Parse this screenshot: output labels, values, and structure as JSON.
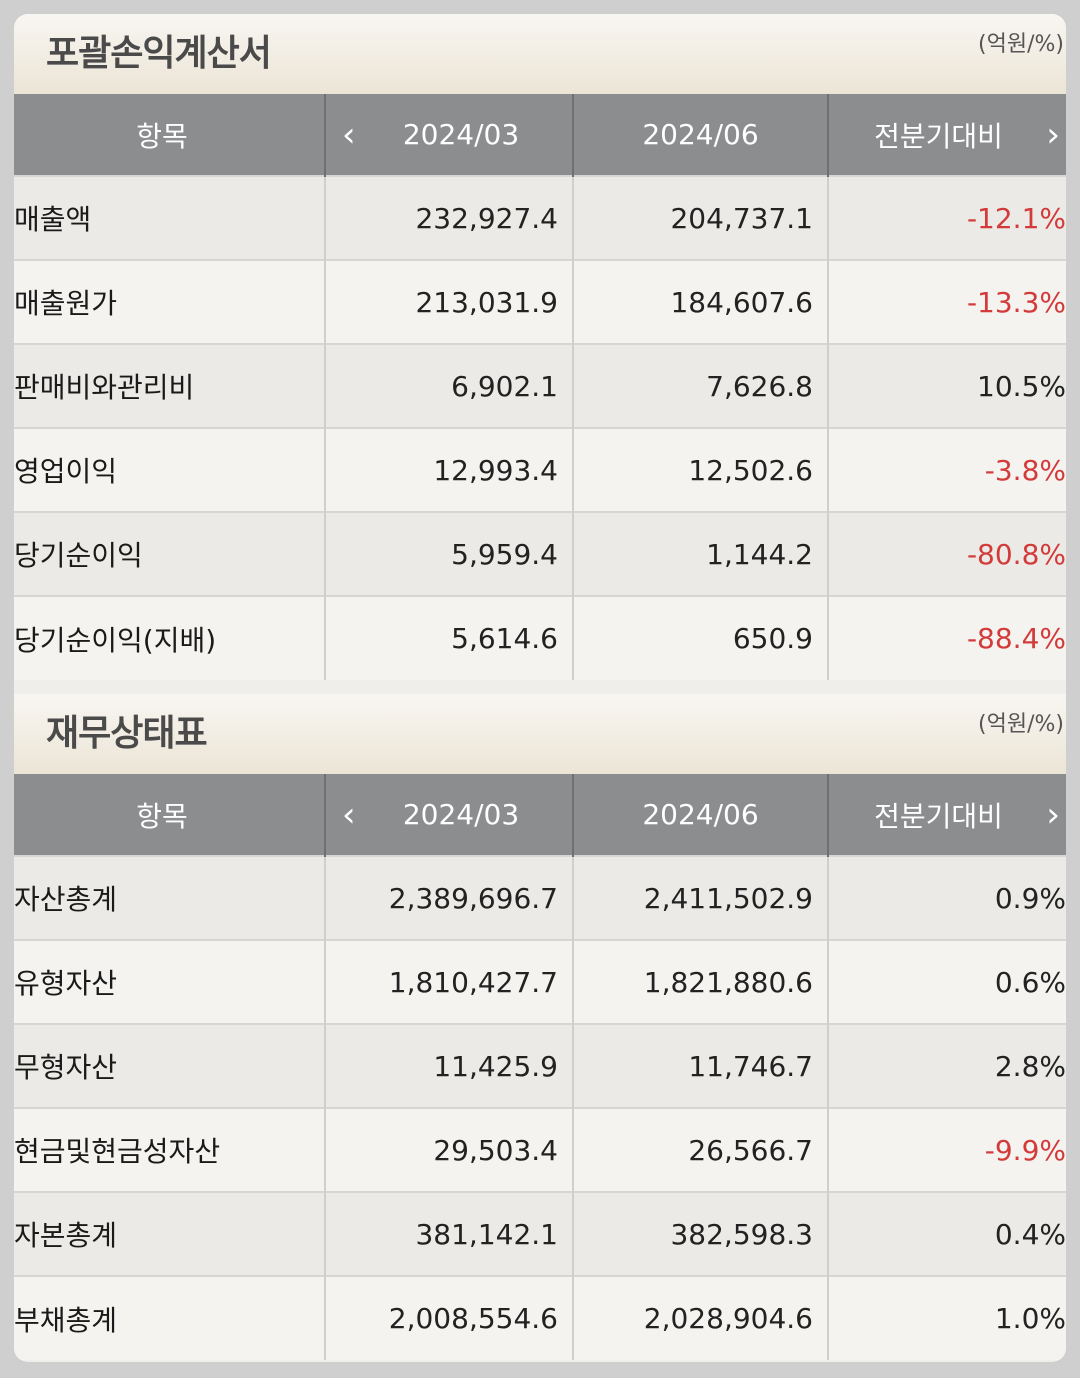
{
  "income": {
    "title": "포괄손익계산서",
    "unit": "(억원/%)",
    "headers": [
      "항목",
      "2024/03",
      "2024/06",
      "전분기대비"
    ],
    "rows": [
      {
        "label": "매출액",
        "v1": "232,927.4",
        "v2": "204,737.1",
        "chg": "-12.1%"
      },
      {
        "label": "매출원가",
        "v1": "213,031.9",
        "v2": "184,607.6",
        "chg": "-13.3%"
      },
      {
        "label": "판매비와관리비",
        "v1": "6,902.1",
        "v2": "7,626.8",
        "chg": "10.5%"
      },
      {
        "label": "영업이익",
        "v1": "12,993.4",
        "v2": "12,502.6",
        "chg": "-3.8%"
      },
      {
        "label": "당기순이익",
        "v1": "5,959.4",
        "v2": "1,144.2",
        "chg": "-80.8%"
      },
      {
        "label": "당기순이익(지배)",
        "v1": "5,614.6",
        "v2": "650.9",
        "chg": "-88.4%"
      }
    ]
  },
  "balance": {
    "title": "재무상태표",
    "unit": "(억원/%)",
    "headers": [
      "항목",
      "2024/03",
      "2024/06",
      "전분기대비"
    ],
    "rows": [
      {
        "label": "자산총계",
        "v1": "2,389,696.7",
        "v2": "2,411,502.9",
        "chg": "0.9%"
      },
      {
        "label": "유형자산",
        "v1": "1,810,427.7",
        "v2": "1,821,880.6",
        "chg": "0.6%"
      },
      {
        "label": "무형자산",
        "v1": "11,425.9",
        "v2": "11,746.7",
        "chg": "2.8%"
      },
      {
        "label": "현금및현금성자산",
        "v1": "29,503.4",
        "v2": "26,566.7",
        "chg": "-9.9%"
      },
      {
        "label": "자본총계",
        "v1": "381,142.1",
        "v2": "382,598.3",
        "chg": "0.4%"
      },
      {
        "label": "부채총계",
        "v1": "2,008,554.6",
        "v2": "2,028,904.6",
        "chg": "1.0%"
      }
    ]
  },
  "icons": {
    "prev": "chevron-left-icon",
    "next": "chevron-right-icon"
  },
  "colors": {
    "negative": "#d33b3b",
    "header_bg": "#8c8d8f"
  }
}
